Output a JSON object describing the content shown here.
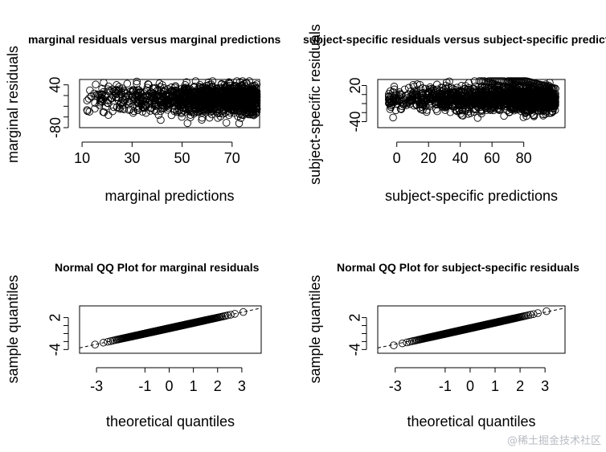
{
  "watermark": "@稀土掘金技术社区",
  "chart_data": [
    {
      "type": "scatter",
      "title": "marginal residuals versus marginal predictions",
      "xlabel": "marginal predictions",
      "ylabel": "marginal residuals",
      "xlim": [
        9,
        81
      ],
      "ylim": [
        -80,
        55
      ],
      "xticks": [
        10,
        30,
        50,
        70
      ],
      "yticks": [
        -80,
        40
      ],
      "ytick_labels": [
        "-80",
        "40"
      ],
      "n_points": 1400,
      "x_distribution": {
        "min": 12,
        "max": 80,
        "mean": 58
      },
      "y_distribution": {
        "center": 0,
        "sd": 20
      },
      "refline": null
    },
    {
      "type": "scatter",
      "title": "subject-specific residuals versus subject-specific predictions",
      "xlabel": "subject-specific predictions",
      "ylabel": "subject-specific residuals",
      "xlim": [
        -12,
        106
      ],
      "ylim": [
        -50,
        30
      ],
      "xticks": [
        0,
        20,
        40,
        60,
        80
      ],
      "yticks": [
        -40,
        20
      ],
      "ytick_labels": [
        "-40",
        "20"
      ],
      "n_points": 1400,
      "x_distribution": {
        "min": -5,
        "max": 100,
        "mean": 55
      },
      "y_distribution": {
        "center": -3,
        "sd": 10
      },
      "diagonal_bands": [
        {
          "x_start": 58,
          "y_start": 35,
          "x_end": 100,
          "y_end": 1
        },
        {
          "x_start": 70,
          "y_start": 35,
          "x_end": 100,
          "y_end": 15
        },
        {
          "x_start": 52,
          "y_start": 30,
          "x_end": 95,
          "y_end": -5
        }
      ],
      "refline": null
    },
    {
      "type": "scatter",
      "title": "Normal QQ Plot for marginal residuals",
      "xlabel": "theoretical quantiles",
      "ylabel": "sample quantiles",
      "xlim": [
        -3.7,
        3.8
      ],
      "ylim": [
        -4.7,
        4.2
      ],
      "xticks": [
        -3,
        -1,
        0,
        1,
        2,
        3
      ],
      "yticks": [
        -4,
        2
      ],
      "ytick_labels": [
        "-4",
        "2"
      ],
      "n_points": 450,
      "qq": {
        "sample_min": -4.3,
        "sample_max": 3.6,
        "slope": 1.0
      },
      "refline": {
        "slope": 1.0,
        "intercept": 0
      }
    },
    {
      "type": "scatter",
      "title": "Normal QQ Plot for subject-specific residuals",
      "xlabel": "theoretical quantiles",
      "ylabel": "sample quantiles",
      "xlim": [
        -3.7,
        3.8
      ],
      "ylim": [
        -4.7,
        4.2
      ],
      "xticks": [
        -3,
        -1,
        0,
        1,
        2,
        3
      ],
      "yticks": [
        -4,
        2
      ],
      "ytick_labels": [
        "-4",
        "2"
      ],
      "n_points": 450,
      "qq": {
        "sample_min": -4.3,
        "sample_max": 3.6,
        "slope": 1.05
      },
      "refline": {
        "slope": 1.0,
        "intercept": 0
      }
    }
  ]
}
